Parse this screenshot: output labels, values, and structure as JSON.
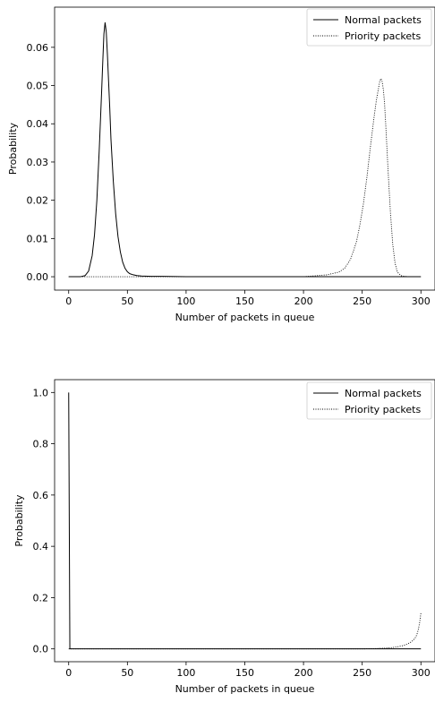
{
  "chart_data": [
    {
      "type": "line",
      "xlabel": "Number of packets in queue",
      "ylabel": "Probability",
      "xlim": [
        -12,
        312
      ],
      "ylim": [
        -0.0035,
        0.0705
      ],
      "xticks": [
        0,
        50,
        100,
        150,
        200,
        250,
        300
      ],
      "yticks": [
        0.0,
        0.01,
        0.02,
        0.03,
        0.04,
        0.05,
        0.06
      ],
      "ytick_labels": [
        "0.00",
        "0.01",
        "0.02",
        "0.03",
        "0.04",
        "0.05",
        "0.06"
      ],
      "legend_position": "top-right",
      "grid": false,
      "series": [
        {
          "name": "Normal packets",
          "style": "solid",
          "x": [
            0,
            10,
            14,
            17,
            20,
            22,
            24,
            26,
            28,
            29,
            30,
            31,
            32,
            33,
            34,
            35,
            36,
            38,
            40,
            42,
            44,
            46,
            48,
            50,
            52,
            55,
            58,
            62,
            70,
            80,
            100,
            150,
            200,
            250,
            300
          ],
          "y": [
            0,
            0,
            0.0003,
            0.0015,
            0.0055,
            0.011,
            0.02,
            0.033,
            0.048,
            0.056,
            0.0635,
            0.0665,
            0.064,
            0.058,
            0.051,
            0.044,
            0.036,
            0.025,
            0.0165,
            0.0105,
            0.0065,
            0.0038,
            0.0022,
            0.0013,
            0.0008,
            0.0005,
            0.0003,
            0.0002,
            0.0001,
            0.0001,
            0,
            0,
            0,
            0,
            0
          ]
        },
        {
          "name": "Priority packets",
          "style": "dotted",
          "x": [
            0,
            100,
            200,
            220,
            230,
            235,
            240,
            245,
            248,
            251,
            254,
            257,
            260,
            262,
            264,
            265,
            266,
            267,
            268,
            269,
            270,
            272,
            274,
            276,
            278,
            280,
            283,
            286,
            290,
            300
          ],
          "y": [
            0,
            0,
            0,
            0.0005,
            0.0012,
            0.0022,
            0.0045,
            0.009,
            0.0135,
            0.019,
            0.026,
            0.034,
            0.0415,
            0.046,
            0.0495,
            0.0512,
            0.0518,
            0.051,
            0.049,
            0.0455,
            0.04,
            0.028,
            0.017,
            0.0085,
            0.0035,
            0.0012,
            0.0003,
            0.0001,
            0,
            0
          ]
        }
      ]
    },
    {
      "type": "line",
      "xlabel": "Number of packets in queue",
      "ylabel": "Probability",
      "xlim": [
        -12,
        312
      ],
      "ylim": [
        -0.05,
        1.05
      ],
      "xticks": [
        0,
        50,
        100,
        150,
        200,
        250,
        300
      ],
      "yticks": [
        0.0,
        0.2,
        0.4,
        0.6,
        0.8,
        1.0
      ],
      "ytick_labels": [
        "0.0",
        "0.2",
        "0.4",
        "0.6",
        "0.8",
        "1.0"
      ],
      "legend_position": "top-right",
      "grid": false,
      "series": [
        {
          "name": "Normal packets",
          "style": "solid",
          "x": [
            0,
            1,
            2,
            50,
            100,
            150,
            200,
            250,
            300
          ],
          "y": [
            1.0,
            0.0,
            0.0,
            0,
            0,
            0,
            0,
            0,
            0
          ]
        },
        {
          "name": "Priority packets",
          "style": "dotted",
          "x": [
            0,
            200,
            250,
            260,
            270,
            275,
            280,
            285,
            288,
            291,
            293,
            295,
            296,
            297,
            298,
            299,
            300
          ],
          "y": [
            0,
            0,
            0,
            0.001,
            0.003,
            0.005,
            0.008,
            0.013,
            0.018,
            0.025,
            0.032,
            0.042,
            0.05,
            0.062,
            0.08,
            0.105,
            0.14
          ]
        }
      ]
    }
  ]
}
